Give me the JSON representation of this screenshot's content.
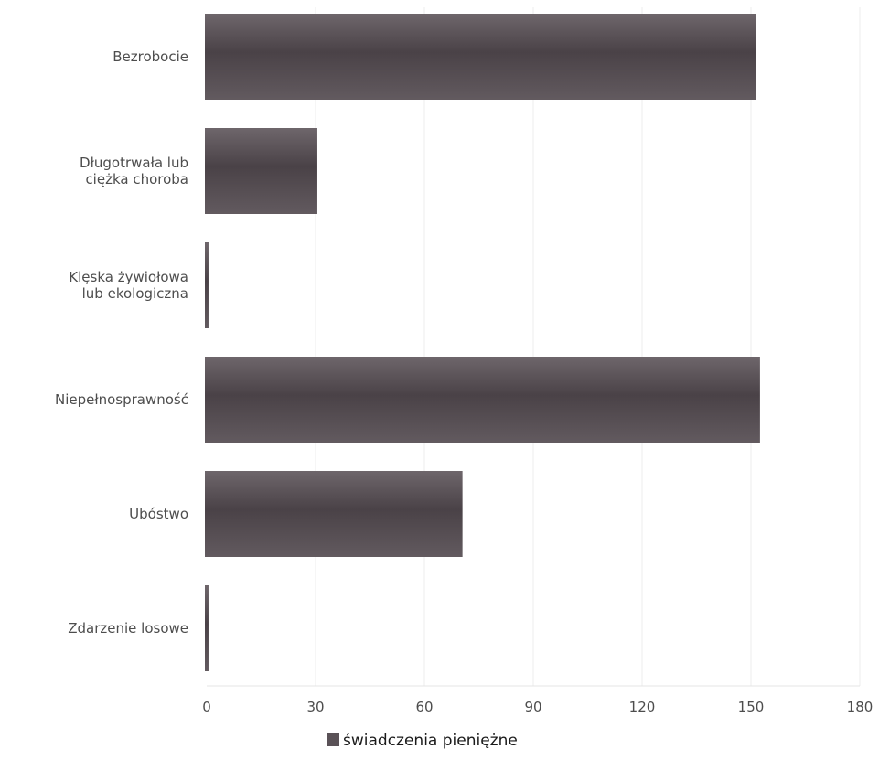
{
  "chart_data": {
    "type": "bar",
    "orientation": "horizontal",
    "categories": [
      [
        "Bezrobocie"
      ],
      [
        "Długotrwała lub",
        "ciężka choroba"
      ],
      [
        "Klęska żywiołowa",
        "lub ekologiczna"
      ],
      [
        "Niepełnosprawność"
      ],
      [
        "Ubóstwo"
      ],
      [
        "Zdarzenie losowe"
      ]
    ],
    "series": [
      {
        "name": "świadczenia pieniężne",
        "values": [
          152,
          31,
          1,
          153,
          71,
          1
        ]
      }
    ],
    "xlim": [
      0,
      180
    ],
    "xticks": [
      0,
      30,
      60,
      90,
      120,
      150,
      180
    ],
    "grid": true,
    "legend_position": "bottom",
    "bar_color": "#5a5257"
  }
}
